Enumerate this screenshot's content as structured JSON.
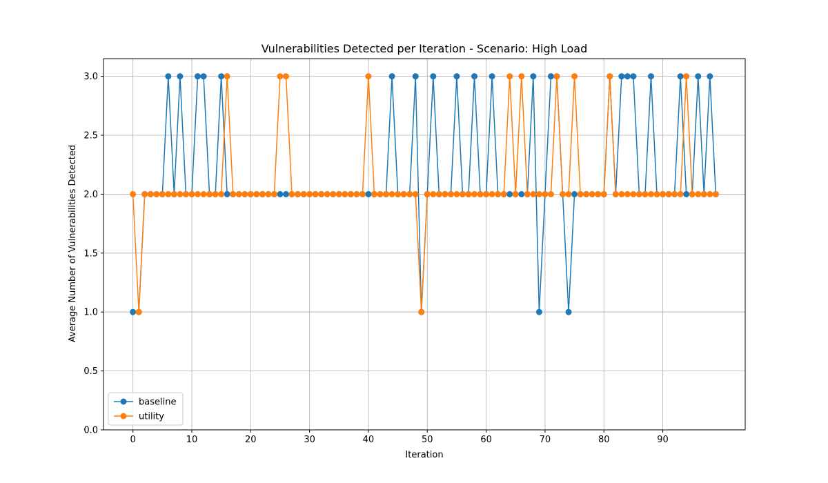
{
  "chart_data": {
    "type": "line",
    "title": "Vulnerabilities Detected per Iteration - Scenario: High Load",
    "xlabel": "Iteration",
    "ylabel": "Average Number of Vulnerabilities Detected",
    "xlim": [
      -5,
      104
    ],
    "ylim": [
      0,
      3.15
    ],
    "xticks": [
      0,
      10,
      20,
      30,
      40,
      50,
      60,
      70,
      80,
      90
    ],
    "yticks": [
      0.0,
      0.5,
      1.0,
      1.5,
      2.0,
      2.5,
      3.0
    ],
    "xtick_labels": [
      "0",
      "10",
      "20",
      "30",
      "40",
      "50",
      "60",
      "70",
      "80",
      "90"
    ],
    "ytick_labels": [
      "0.0",
      "0.5",
      "1.0",
      "1.5",
      "2.0",
      "2.5",
      "3.0"
    ],
    "grid": true,
    "legend_position": "lower-left",
    "series": [
      {
        "name": "baseline",
        "color": "#1f77b4",
        "values": [
          1,
          1,
          2,
          2,
          2,
          2,
          3,
          2,
          3,
          2,
          2,
          3,
          3,
          2,
          2,
          3,
          2,
          2,
          2,
          2,
          2,
          2,
          2,
          2,
          2,
          2,
          2,
          2,
          2,
          2,
          2,
          2,
          2,
          2,
          2,
          2,
          2,
          2,
          2,
          2,
          2,
          2,
          2,
          2,
          3,
          2,
          2,
          2,
          3,
          1,
          2,
          3,
          2,
          2,
          2,
          3,
          2,
          2,
          3,
          2,
          2,
          3,
          2,
          2,
          2,
          2,
          2,
          2,
          3,
          1,
          2,
          3,
          3,
          2,
          1,
          2,
          2,
          2,
          2,
          2,
          2,
          3,
          2,
          3,
          3,
          3,
          2,
          2,
          3,
          2,
          2,
          2,
          2,
          3,
          2,
          2,
          3,
          2,
          3,
          2
        ]
      },
      {
        "name": "utility",
        "color": "#ff7f0e",
        "values": [
          2,
          1,
          2,
          2,
          2,
          2,
          2,
          2,
          2,
          2,
          2,
          2,
          2,
          2,
          2,
          2,
          3,
          2,
          2,
          2,
          2,
          2,
          2,
          2,
          2,
          3,
          3,
          2,
          2,
          2,
          2,
          2,
          2,
          2,
          2,
          2,
          2,
          2,
          2,
          2,
          3,
          2,
          2,
          2,
          2,
          2,
          2,
          2,
          2,
          1,
          2,
          2,
          2,
          2,
          2,
          2,
          2,
          2,
          2,
          2,
          2,
          2,
          2,
          2,
          3,
          2,
          3,
          2,
          2,
          2,
          2,
          2,
          3,
          2,
          2,
          3,
          2,
          2,
          2,
          2,
          2,
          3,
          2,
          2,
          2,
          2,
          2,
          2,
          2,
          2,
          2,
          2,
          2,
          2,
          3,
          2,
          2,
          2,
          2,
          2
        ]
      }
    ]
  }
}
